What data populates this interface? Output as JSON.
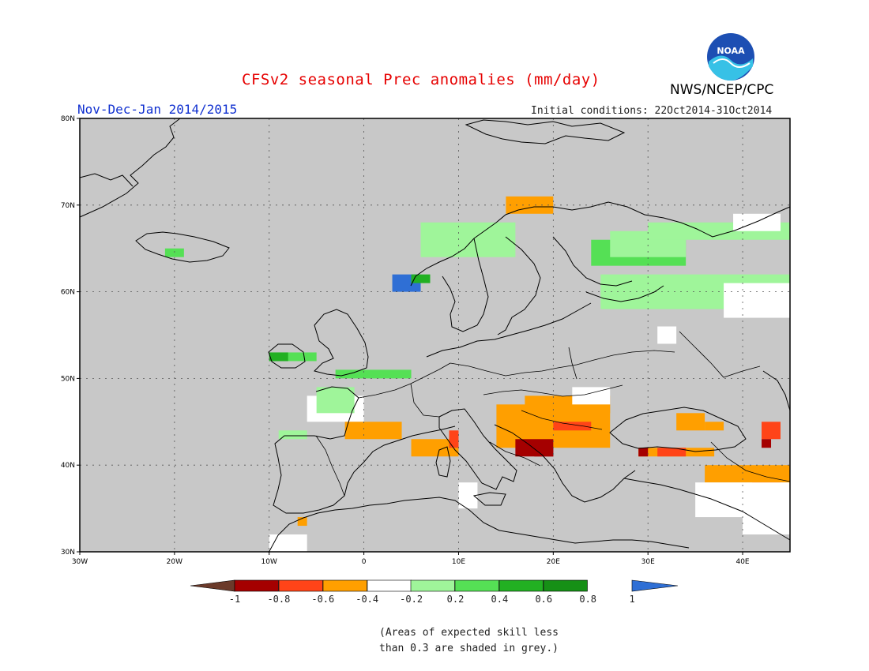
{
  "header": {
    "title": "CFSv2 seasonal Prec anomalies (mm/day)",
    "agency": "NWS/NCEP/CPC",
    "logo_text": "NOAA",
    "season": "Nov-Dec-Jan 2014/2015",
    "initial_conditions": "Initial conditions: 22Oct2014-31Oct2014"
  },
  "map": {
    "region": "Europe",
    "lon_range": [
      -30,
      45
    ],
    "lat_range": [
      30,
      80
    ],
    "background_color": "#c8c8c8",
    "lat_ticks": [
      "30N",
      "40N",
      "50N",
      "60N",
      "70N",
      "80N"
    ],
    "lon_ticks": [
      "30W",
      "20W",
      "10W",
      "0",
      "10E",
      "20E",
      "30E",
      "40E"
    ]
  },
  "colorbar": {
    "labels": [
      "-1",
      "-0.8",
      "-0.6",
      "-0.4",
      "-0.2",
      "0.2",
      "0.4",
      "0.6",
      "0.8",
      "1"
    ],
    "colors": [
      "#6b3a2a",
      "#a50000",
      "#ff4418",
      "#ff9f00",
      "#ffffff",
      "#9ff59a",
      "#55e055",
      "#22b022",
      "#169016",
      "#2f6fd5"
    ]
  },
  "footnote": {
    "line1": "(Areas of expected skill less",
    "line2": "than 0.3 are shaded in grey.)"
  }
}
